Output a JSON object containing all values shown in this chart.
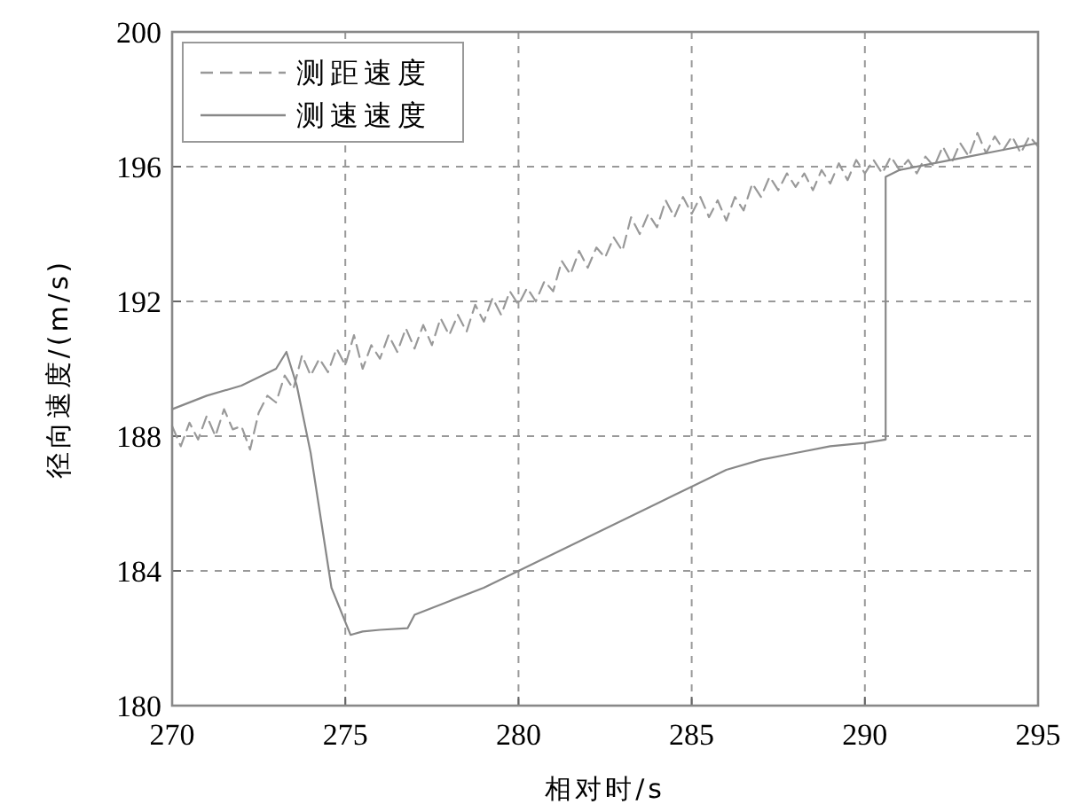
{
  "chart_data": {
    "type": "line",
    "xlabel": "相对时/s",
    "ylabel": "径向速度/(m/s)",
    "xlim": [
      270,
      295
    ],
    "ylim": [
      180,
      200
    ],
    "xticks": [
      270,
      275,
      280,
      285,
      290,
      295
    ],
    "yticks": [
      180,
      184,
      188,
      192,
      196,
      200
    ],
    "grid": true,
    "legend": "top left",
    "series": [
      {
        "name": "测距速度",
        "color": "#999999",
        "line_style": "dashed",
        "x": [
          270,
          270.25,
          270.5,
          270.75,
          271,
          271.25,
          271.5,
          271.75,
          272,
          272.25,
          272.5,
          272.75,
          273,
          273.25,
          273.5,
          273.75,
          274,
          274.25,
          274.5,
          274.75,
          275,
          275.25,
          275.5,
          275.75,
          276,
          276.25,
          276.5,
          276.75,
          277,
          277.25,
          277.5,
          277.75,
          278,
          278.25,
          278.5,
          278.75,
          279,
          279.25,
          279.5,
          279.75,
          280,
          280.25,
          280.5,
          280.75,
          281,
          281.25,
          281.5,
          281.75,
          282,
          282.25,
          282.5,
          282.75,
          283,
          283.25,
          283.5,
          283.75,
          284,
          284.25,
          284.5,
          284.75,
          285,
          285.25,
          285.5,
          285.75,
          286,
          286.25,
          286.5,
          286.75,
          287,
          287.25,
          287.5,
          287.75,
          288,
          288.25,
          288.5,
          288.75,
          289,
          289.25,
          289.5,
          289.75,
          290,
          290.25,
          290.5,
          290.75,
          291,
          291.25,
          291.5,
          291.75,
          292,
          292.25,
          292.5,
          292.75,
          293,
          293.25,
          293.5,
          293.75,
          294,
          294.25,
          294.5,
          294.75,
          295
        ],
        "values": [
          188.3,
          187.7,
          188.4,
          187.9,
          188.6,
          188.0,
          188.8,
          188.2,
          188.3,
          187.6,
          188.7,
          189.2,
          189.0,
          189.8,
          189.4,
          190.4,
          189.8,
          190.3,
          189.9,
          190.6,
          190.1,
          191.0,
          190.0,
          190.7,
          190.3,
          191.0,
          190.5,
          191.2,
          190.6,
          191.3,
          190.7,
          191.5,
          191.0,
          191.6,
          191.1,
          191.9,
          191.4,
          192.1,
          191.6,
          192.3,
          191.9,
          192.4,
          192.0,
          192.6,
          192.3,
          193.2,
          192.8,
          193.5,
          193.0,
          193.6,
          193.3,
          193.9,
          193.5,
          194.5,
          194.0,
          194.6,
          194.2,
          195.0,
          194.5,
          195.1,
          194.6,
          195.1,
          194.5,
          195.0,
          194.4,
          195.1,
          194.7,
          195.5,
          195.1,
          195.7,
          195.3,
          195.8,
          195.4,
          195.8,
          195.3,
          195.9,
          195.5,
          196.1,
          195.6,
          196.2,
          195.8,
          196.2,
          195.8,
          196.3,
          195.9,
          196.2,
          195.8,
          196.3,
          196.0,
          196.6,
          196.1,
          196.7,
          196.3,
          197.0,
          196.4,
          196.9,
          196.5,
          196.9,
          196.4,
          196.9,
          196.6
        ]
      },
      {
        "name": "测速速度",
        "color": "#888888",
        "line_style": "solid",
        "x": [
          270,
          271,
          272,
          273,
          273.3,
          273.6,
          274,
          274.3,
          274.6,
          275.15,
          275.5,
          276,
          276.8,
          277,
          278,
          279,
          280,
          281,
          282,
          283,
          284,
          285,
          286,
          287,
          288,
          289,
          290,
          290.6,
          290.6,
          291,
          292,
          293,
          294,
          295
        ],
        "values": [
          188.8,
          189.2,
          189.5,
          190.0,
          190.5,
          189.5,
          187.5,
          185.5,
          183.5,
          182.1,
          182.2,
          182.25,
          182.3,
          182.7,
          183.1,
          183.5,
          184.0,
          184.5,
          185.0,
          185.5,
          186.0,
          186.5,
          187.0,
          187.3,
          187.5,
          187.7,
          187.8,
          187.9,
          195.7,
          195.9,
          196.1,
          196.3,
          196.5,
          196.7
        ]
      }
    ]
  }
}
